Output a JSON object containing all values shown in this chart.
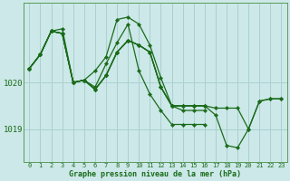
{
  "title": "Graphe pression niveau de la mer (hPa)",
  "bg_color": "#cce8e8",
  "grid_color": "#aad0d0",
  "line_color": "#1a6b1a",
  "marker_color": "#1a6b1a",
  "xlim": [
    -0.5,
    23.5
  ],
  "ylim": [
    1018.3,
    1021.7
  ],
  "yticks": [
    1019,
    1020
  ],
  "xticks": [
    0,
    1,
    2,
    3,
    4,
    5,
    6,
    7,
    8,
    9,
    10,
    11,
    12,
    13,
    14,
    15,
    16,
    17,
    18,
    19,
    20,
    21,
    22,
    23
  ],
  "series": [
    {
      "x": [
        0,
        1,
        2,
        3,
        4,
        5,
        6,
        7,
        8,
        9,
        10,
        11,
        12,
        13,
        14,
        15,
        16
      ],
      "y": [
        1020.3,
        1020.6,
        1021.1,
        1021.05,
        1020.0,
        1020.05,
        1019.9,
        1020.4,
        1020.85,
        1021.25,
        1020.25,
        1019.75,
        1019.4,
        1019.1,
        1019.1,
        1019.1,
        1019.1
      ]
    },
    {
      "x": [
        0,
        1,
        2,
        3,
        4,
        5,
        6,
        7,
        8,
        9,
        10,
        11,
        12,
        13,
        14,
        15,
        16
      ],
      "y": [
        1020.3,
        1020.6,
        1021.1,
        1021.05,
        1020.0,
        1020.05,
        1019.85,
        1020.15,
        1020.65,
        1020.9,
        1020.8,
        1020.65,
        1019.9,
        1019.5,
        1019.4,
        1019.4,
        1019.4
      ]
    },
    {
      "x": [
        0,
        1,
        2,
        3,
        4,
        5,
        6,
        7,
        8,
        9,
        10,
        11,
        12,
        13,
        14,
        15,
        16
      ],
      "y": [
        1020.3,
        1020.6,
        1021.1,
        1021.15,
        1020.0,
        1020.05,
        1020.25,
        1020.55,
        1021.35,
        1021.4,
        1021.25,
        1020.8,
        1020.1,
        1019.5,
        1019.5,
        1019.5,
        1019.5
      ]
    },
    {
      "x": [
        0,
        1,
        2,
        3,
        4,
        5,
        6,
        7,
        8,
        9,
        10,
        11,
        12,
        13,
        14,
        15,
        16,
        17,
        18,
        19,
        20,
        21,
        22,
        23
      ],
      "y": [
        1020.3,
        1020.6,
        1021.1,
        1021.05,
        1020.0,
        1020.05,
        1019.85,
        1020.15,
        1020.65,
        1020.9,
        1020.8,
        1020.65,
        1019.9,
        1019.5,
        1019.5,
        1019.5,
        1019.5,
        1019.45,
        1019.45,
        1019.45,
        1019.0,
        1019.6,
        1019.65,
        1019.65
      ]
    },
    {
      "x": [
        0,
        1,
        2,
        3,
        4,
        5,
        6,
        7,
        8,
        9,
        10,
        11,
        12,
        13,
        14,
        15,
        16,
        17,
        18,
        19,
        20,
        21,
        22,
        23
      ],
      "y": [
        1020.3,
        1020.6,
        1021.1,
        1021.05,
        1020.0,
        1020.05,
        1019.85,
        1020.15,
        1020.65,
        1020.9,
        1020.8,
        1020.65,
        1019.9,
        1019.5,
        1019.5,
        1019.5,
        1019.5,
        1019.3,
        1018.65,
        1018.6,
        1019.0,
        1019.6,
        1019.65,
        1019.65
      ]
    }
  ]
}
